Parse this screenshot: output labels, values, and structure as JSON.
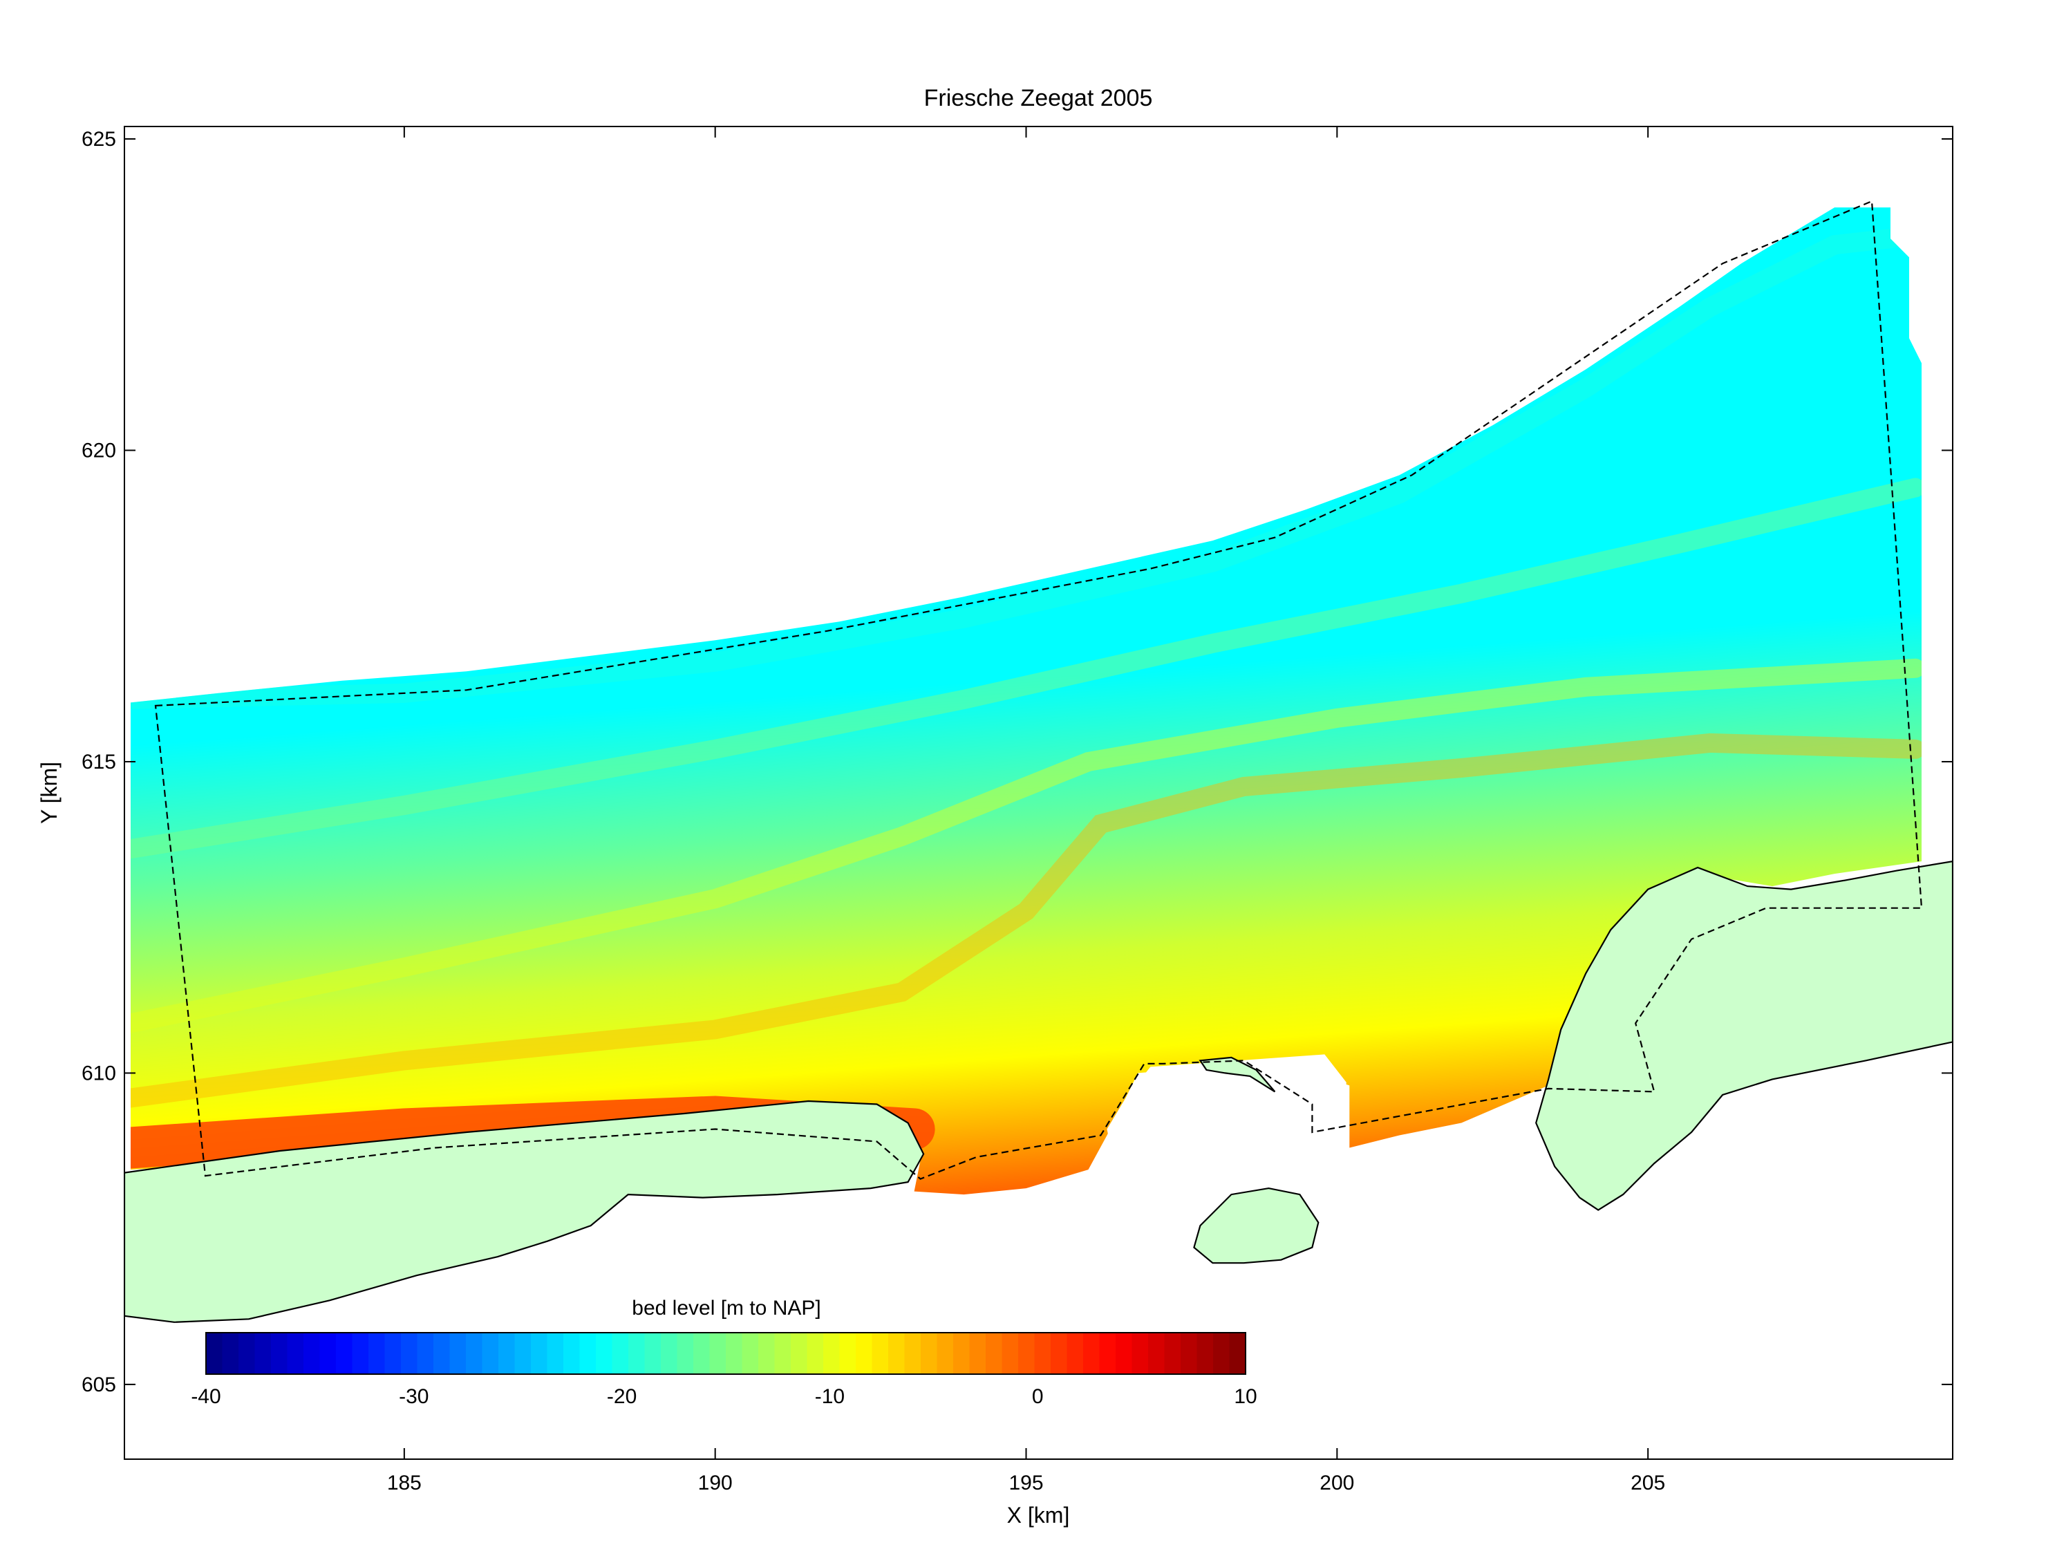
{
  "chart_data": {
    "type": "heatmap",
    "title": "Friesche Zeegat 2005",
    "xlabel": "X [km]",
    "ylabel": "Y [km]",
    "xlim": [
      180.5,
      209.9
    ],
    "ylim": [
      603.8,
      625.2
    ],
    "xticks": [
      185,
      190,
      195,
      200,
      205
    ],
    "yticks": [
      605,
      610,
      615,
      620,
      625
    ],
    "grid": false,
    "colorbar": {
      "label": "bed level [m to NAP]",
      "ticks": [
        -40,
        -30,
        -20,
        -10,
        0,
        10
      ],
      "range": [
        -40,
        10
      ],
      "levels": 64,
      "colormap": "jet",
      "placement": "lower-left inside axes"
    },
    "bathymetry": {
      "description_values": "offshore depth about -20 m to NAP grading to about -10 m mid-domain and 0 m near the coast and tidal channels",
      "northern_edge": [
        [
          180.6,
          615.95
        ],
        [
          182,
          616.1
        ],
        [
          184,
          616.3
        ],
        [
          186,
          616.45
        ],
        [
          188,
          616.7
        ],
        [
          190,
          616.95
        ],
        [
          192,
          617.25
        ],
        [
          194,
          617.65
        ],
        [
          196,
          618.1
        ],
        [
          198,
          618.55
        ],
        [
          199.5,
          619.05
        ],
        [
          201,
          619.6
        ],
        [
          202.5,
          620.4
        ],
        [
          204,
          621.3
        ],
        [
          205.5,
          622.3
        ],
        [
          206.5,
          623.0
        ],
        [
          207.5,
          623.6
        ],
        [
          208,
          623.9
        ],
        [
          208.9,
          623.9
        ],
        [
          208.9,
          623.4
        ],
        [
          209.2,
          623.1
        ],
        [
          209.2,
          621.8
        ],
        [
          209.4,
          621.4
        ],
        [
          209.4,
          613.5
        ]
      ],
      "contour_levels": [
        {
          "level": -20,
          "line": [
            [
              180.6,
              616.0
            ],
            [
              185,
              616.1
            ],
            [
              190,
              616.6
            ],
            [
              194,
              617.3
            ],
            [
              198,
              618.2
            ],
            [
              201,
              619.3
            ],
            [
              204,
              621.0
            ],
            [
              206,
              622.3
            ],
            [
              208,
              623.3
            ],
            [
              208.9,
              623.4
            ]
          ]
        },
        {
          "level": -15,
          "line": [
            [
              180.6,
              613.6
            ],
            [
              185,
              614.3
            ],
            [
              190,
              615.2
            ],
            [
              194,
              616.0
            ],
            [
              198,
              616.9
            ],
            [
              202,
              617.7
            ],
            [
              205.5,
              618.5
            ],
            [
              209.3,
              619.4
            ]
          ]
        },
        {
          "level": -10,
          "line": [
            [
              180.6,
              610.8
            ],
            [
              185,
              611.7
            ],
            [
              190,
              612.8
            ],
            [
              193,
              613.8
            ],
            [
              196,
              615.0
            ],
            [
              200,
              615.7
            ],
            [
              204,
              616.2
            ],
            [
              209.3,
              616.5
            ]
          ]
        },
        {
          "level": -5,
          "line": [
            [
              180.6,
              609.6
            ],
            [
              185,
              610.2
            ],
            [
              190,
              610.7
            ],
            [
              193,
              611.3
            ],
            [
              195,
              612.6
            ],
            [
              196.2,
              614.0
            ],
            [
              198.5,
              614.6
            ],
            [
              202,
              614.9
            ],
            [
              206,
              615.3
            ],
            [
              209.3,
              615.2
            ]
          ]
        },
        {
          "level": 0,
          "line": [
            [
              180.6,
              608.8
            ],
            [
              185,
              609.1
            ],
            [
              190,
              609.3
            ],
            [
              193.2,
              609.1
            ]
          ]
        }
      ]
    },
    "reference_polygon": {
      "style": "dashed black",
      "points": [
        [
          181,
          615.9
        ],
        [
          186,
          616.15
        ],
        [
          191.8,
          617.1
        ],
        [
          197,
          618.1
        ],
        [
          199,
          618.6
        ],
        [
          201.2,
          619.6
        ],
        [
          206.2,
          623.0
        ],
        [
          208.6,
          624.0
        ],
        [
          209.4,
          612.65
        ],
        [
          206.9,
          612.65
        ],
        [
          205.7,
          612.15
        ],
        [
          204.8,
          610.8
        ],
        [
          205.1,
          609.7
        ],
        [
          203.4,
          609.75
        ],
        [
          199.6,
          609.05
        ],
        [
          199.6,
          609.5
        ],
        [
          198.5,
          610.2
        ],
        [
          197.2,
          610.15
        ],
        [
          196.9,
          610.15
        ],
        [
          196.2,
          609.0
        ],
        [
          194.2,
          608.65
        ],
        [
          193.3,
          608.3
        ],
        [
          192.6,
          608.9
        ],
        [
          190.0,
          609.1
        ],
        [
          185.5,
          608.8
        ],
        [
          181.8,
          608.35
        ]
      ]
    },
    "islands": {
      "fill": "#ccffcc",
      "stroke": "#000000",
      "ameland": [
        [
          180.5,
          608.4
        ],
        [
          183,
          608.75
        ],
        [
          186,
          609.05
        ],
        [
          189.5,
          609.35
        ],
        [
          191.5,
          609.55
        ],
        [
          192.6,
          609.5
        ],
        [
          193.1,
          609.2
        ],
        [
          193.35,
          608.7
        ],
        [
          193.1,
          608.25
        ],
        [
          192.5,
          608.15
        ],
        [
          191,
          608.05
        ],
        [
          189.8,
          608.0
        ],
        [
          188.6,
          608.05
        ],
        [
          188.0,
          607.55
        ],
        [
          187.3,
          607.3
        ],
        [
          186.5,
          607.05
        ],
        [
          185.2,
          606.75
        ],
        [
          183.8,
          606.35
        ],
        [
          182.5,
          606.05
        ],
        [
          181.3,
          606.0
        ],
        [
          180.5,
          606.1
        ]
      ],
      "schiermonnikoog": [
        [
          203.4,
          609.9
        ],
        [
          203.6,
          610.7
        ],
        [
          204.0,
          611.6
        ],
        [
          204.4,
          612.3
        ],
        [
          205.0,
          612.95
        ],
        [
          205.8,
          613.3
        ],
        [
          206.6,
          613.0
        ],
        [
          207.3,
          612.95
        ],
        [
          208.2,
          613.1
        ],
        [
          209.0,
          613.25
        ],
        [
          209.9,
          613.4
        ],
        [
          209.9,
          610.5
        ],
        [
          208.5,
          610.2
        ],
        [
          207.0,
          609.9
        ],
        [
          206.2,
          609.65
        ],
        [
          205.7,
          609.05
        ],
        [
          205.1,
          608.55
        ],
        [
          204.6,
          608.05
        ],
        [
          204.2,
          607.8
        ],
        [
          203.9,
          608.0
        ],
        [
          203.5,
          608.5
        ],
        [
          203.2,
          609.2
        ]
      ],
      "engelsmanplaat": [
        [
          197.8,
          607.55
        ],
        [
          198.3,
          608.05
        ],
        [
          198.9,
          608.15
        ],
        [
          199.4,
          608.05
        ],
        [
          199.7,
          607.6
        ],
        [
          199.6,
          607.2
        ],
        [
          199.1,
          607.0
        ],
        [
          198.5,
          606.95
        ],
        [
          198.0,
          606.95
        ],
        [
          197.7,
          607.2
        ]
      ],
      "islet": [
        [
          197.8,
          610.2
        ],
        [
          198.3,
          610.25
        ],
        [
          198.7,
          610.05
        ],
        [
          199.0,
          609.7
        ],
        [
          198.6,
          609.95
        ],
        [
          198.2,
          610.0
        ],
        [
          197.9,
          610.05
        ]
      ]
    },
    "dry_inlet_area": [
      [
        197.0,
        610.1
      ],
      [
        199.8,
        610.3
      ],
      [
        200.15,
        609.85
      ],
      [
        200.1,
        609.1
      ],
      [
        199.9,
        608.9
      ],
      [
        199.5,
        608.55
      ],
      [
        198.5,
        608.4
      ],
      [
        197.6,
        608.25
      ],
      [
        196.9,
        608.35
      ],
      [
        196.4,
        608.6
      ],
      [
        196.3,
        609.1
      ],
      [
        196.6,
        609.6
      ]
    ]
  }
}
